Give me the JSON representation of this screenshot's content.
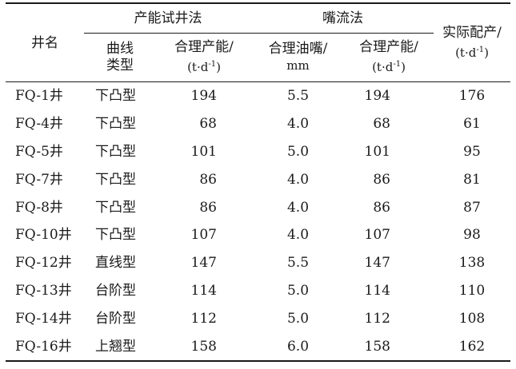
{
  "header": {
    "well_name": "井名",
    "group_test": "产能试井法",
    "group_choke": "嘴流法",
    "actual": "实际配产/",
    "actual_unit": "(t·d",
    "unit_close": ")",
    "unit_exp": "-1",
    "curve_type_1": "曲线",
    "curve_type_2": "类型",
    "reasonable_cap_1": "合理产能/",
    "reasonable_cap_2": "(t·d",
    "choke_1": "合理油嘴/",
    "choke_2": "mm",
    "reasonable_cap2_1": "合理产能/",
    "reasonable_cap2_2": "(t·d"
  },
  "rows": [
    {
      "name": "FQ-1井",
      "type": "下凸型",
      "cap": "194",
      "choke": "5.5",
      "cap2": "194",
      "actual": "176"
    },
    {
      "name": "FQ-4井",
      "type": "下凸型",
      "cap": "68",
      "choke": "4.0",
      "cap2": "68",
      "actual": "61"
    },
    {
      "name": "FQ-5井",
      "type": "下凸型",
      "cap": "101",
      "choke": "5.0",
      "cap2": "101",
      "actual": "95"
    },
    {
      "name": "FQ-7井",
      "type": "下凸型",
      "cap": "86",
      "choke": "4.0",
      "cap2": "86",
      "actual": "81"
    },
    {
      "name": "FQ-8井",
      "type": "下凸型",
      "cap": "86",
      "choke": "4.0",
      "cap2": "86",
      "actual": "87"
    },
    {
      "name": "FQ-10井",
      "type": "下凸型",
      "cap": "107",
      "choke": "4.0",
      "cap2": "107",
      "actual": "98"
    },
    {
      "name": "FQ-12井",
      "type": "直线型",
      "cap": "147",
      "choke": "5.5",
      "cap2": "147",
      "actual": "138"
    },
    {
      "name": "FQ-13井",
      "type": "台阶型",
      "cap": "114",
      "choke": "5.0",
      "cap2": "114",
      "actual": "110"
    },
    {
      "name": "FQ-14井",
      "type": "台阶型",
      "cap": "112",
      "choke": "5.0",
      "cap2": "112",
      "actual": "108"
    },
    {
      "name": "FQ-16井",
      "type": "上翘型",
      "cap": "158",
      "choke": "6.0",
      "cap2": "158",
      "actual": "162"
    }
  ]
}
